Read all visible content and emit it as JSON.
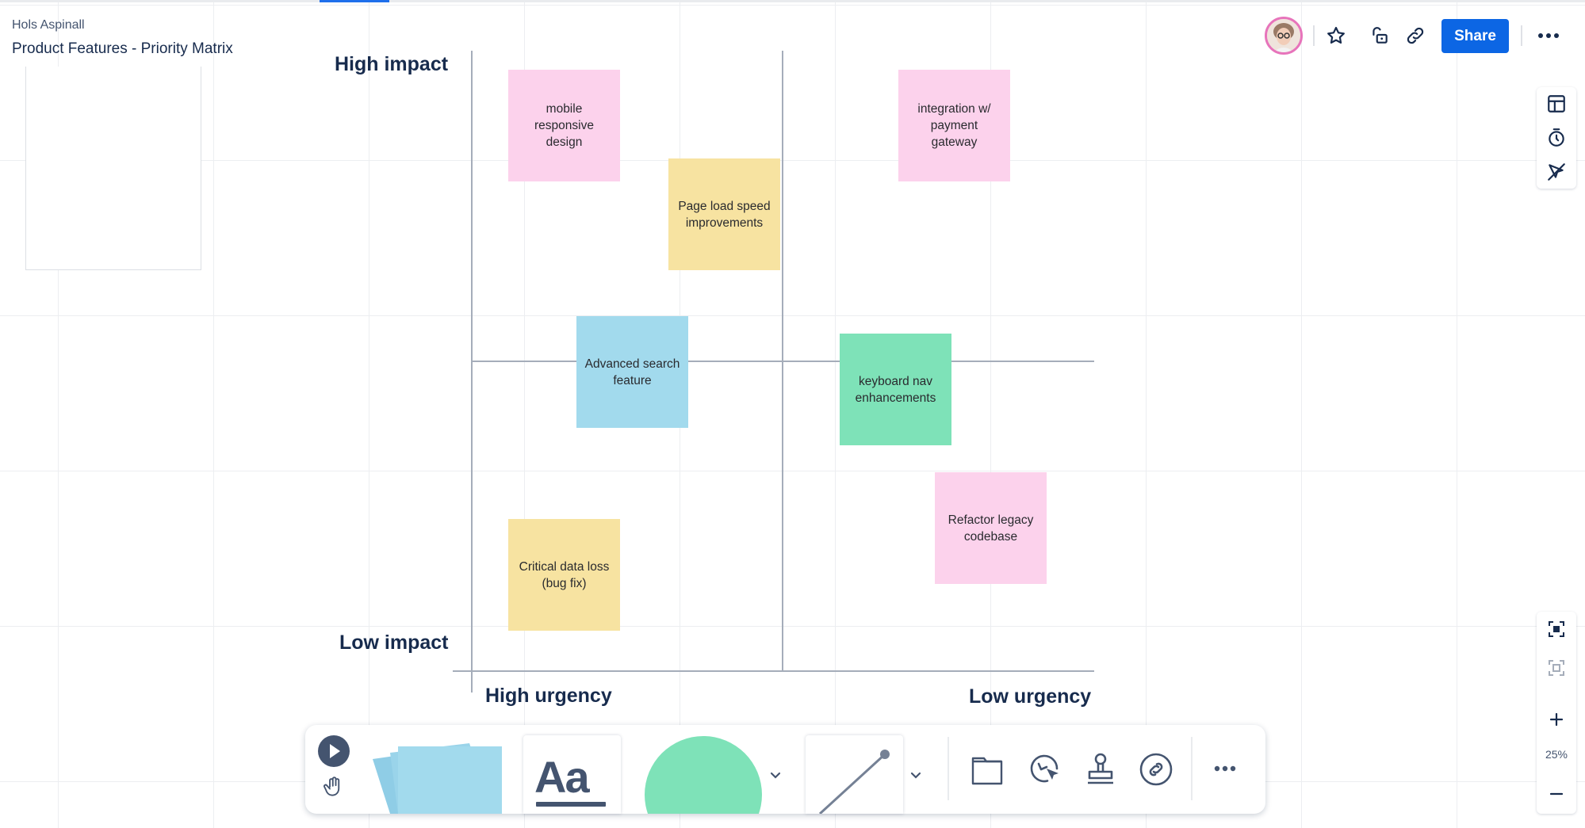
{
  "header": {
    "owner": "Hols Aspinall",
    "title": "Product Features - Priority Matrix",
    "share_label": "Share"
  },
  "matrix": {
    "y_top_label": "High impact",
    "y_bottom_label": "Low impact",
    "x_left_label": "High urgency",
    "x_right_label": "Low urgency"
  },
  "stickies": [
    {
      "text": "mobile responsive design",
      "color": "#fcd2ec"
    },
    {
      "text": "integration w/ payment gateway",
      "color": "#fcd2ec"
    },
    {
      "text": "Page load speed improvements",
      "color": "#f7e3a1"
    },
    {
      "text": "Advanced search feature",
      "color": "#a2daed"
    },
    {
      "text": "keyboard nav enhancements",
      "color": "#7ee2b8"
    },
    {
      "text": "Refactor legacy codebase",
      "color": "#fcd2ec"
    },
    {
      "text": "Critical data loss (bug fix)",
      "color": "#f7e3a1"
    }
  ],
  "zoom": {
    "level": "25%"
  },
  "toolbar": {
    "text_tool_label": "Aa",
    "shape_color": "#7ee2b8",
    "sticky_color": "#a2daed"
  },
  "colors": {
    "brand_blue": "#0c66e4",
    "text_dark": "#172b4d"
  }
}
